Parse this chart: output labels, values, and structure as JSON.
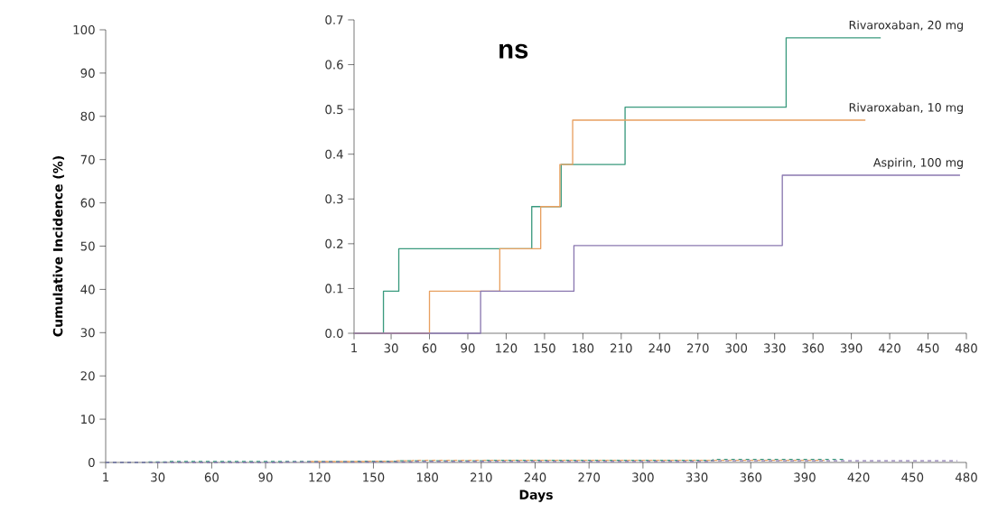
{
  "chart_data": [
    {
      "type": "step",
      "xlabel": "Days",
      "ylabel": "Cumulative Incidence (%)",
      "xlim": [
        1,
        480
      ],
      "xticks": [
        1,
        30,
        60,
        90,
        120,
        150,
        180,
        210,
        240,
        270,
        300,
        330,
        360,
        390,
        420,
        450,
        480
      ],
      "ylim": [
        0,
        100
      ],
      "yticks": [
        0,
        10,
        20,
        30,
        40,
        50,
        60,
        70,
        80,
        90,
        100
      ],
      "line_style": "dashed",
      "series": [
        {
          "color": "#3a9a7e",
          "x": [
            1,
            24,
            36,
            140,
            163,
            213,
            339,
            413
          ],
          "values": [
            0,
            0.1,
            0.2,
            0.3,
            0.4,
            0.5,
            0.7,
            0.7
          ]
        },
        {
          "color": "#e8a060",
          "x": [
            115,
            147,
            162,
            172,
            401
          ],
          "values": [
            0.2,
            0.3,
            0.4,
            0.5,
            0.5
          ]
        },
        {
          "color": "#8a78b0",
          "x": [
            1,
            100,
            173,
            336,
            475
          ],
          "values": [
            0,
            0.1,
            0.2,
            0.4,
            0.4
          ]
        }
      ]
    },
    {
      "type": "step",
      "annotations": [
        "ns"
      ],
      "xlim": [
        1,
        480
      ],
      "xticks": [
        1,
        30,
        60,
        90,
        120,
        150,
        180,
        210,
        240,
        270,
        300,
        330,
        360,
        390,
        420,
        450,
        480
      ],
      "ylim": [
        0,
        0.7
      ],
      "yticks": [
        {
          "value": 0,
          "label": "0.0"
        },
        {
          "value": 0.1,
          "label": "0.1"
        },
        {
          "value": 0.2,
          "label": "0.2"
        },
        {
          "value": 0.3,
          "label": "0.3"
        },
        {
          "value": 0.4,
          "label": "0.4"
        },
        {
          "value": 0.5,
          "label": "0.5"
        },
        {
          "value": 0.6,
          "label": "0.6"
        },
        {
          "value": 0.7,
          "label": "0.7"
        }
      ],
      "line_style": "solid",
      "series": [
        {
          "name": "Rivaroxaban, 20 mg",
          "color": "#3a9a7e",
          "x": [
            1,
            24,
            36,
            140,
            163,
            213,
            339,
            413
          ],
          "values": [
            0,
            0.094,
            0.189,
            0.283,
            0.377,
            0.505,
            0.66,
            0.66
          ]
        },
        {
          "name": "Rivaroxaban, 10 mg",
          "color": "#e8a060",
          "x": [
            1,
            60,
            115,
            147,
            162,
            172,
            401
          ],
          "values": [
            0,
            0.094,
            0.189,
            0.283,
            0.377,
            0.476,
            0.476
          ]
        },
        {
          "name": "Aspirin, 100 mg",
          "color": "#8a78b0",
          "x": [
            1,
            100,
            173,
            336,
            475
          ],
          "values": [
            0,
            0.094,
            0.196,
            0.353,
            0.353
          ]
        }
      ]
    }
  ]
}
